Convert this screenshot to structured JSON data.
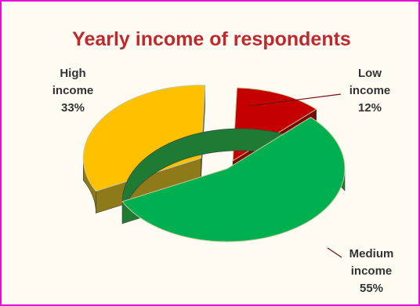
{
  "chart_data": {
    "type": "pie",
    "title": "Yearly income of respondents",
    "slices": [
      {
        "label_lines": [
          "Low",
          "income"
        ],
        "pct_label": "12%",
        "value": 12,
        "color": "#c40000",
        "side_color": "#7a0a0a"
      },
      {
        "label_lines": [
          "Medium",
          "income"
        ],
        "pct_label": "55%",
        "value": 55,
        "color": "#00b050",
        "side_color": "#1f7a34"
      },
      {
        "label_lines": [
          "High",
          "income"
        ],
        "pct_label": "33%",
        "value": 33,
        "color": "#ffc000",
        "side_color": "#8f7a1a"
      }
    ],
    "legend": "none",
    "style": "3d-exploded"
  },
  "colors": {
    "border": "#e60fd8",
    "title": "#c0282d",
    "background": "#fefcf2"
  }
}
